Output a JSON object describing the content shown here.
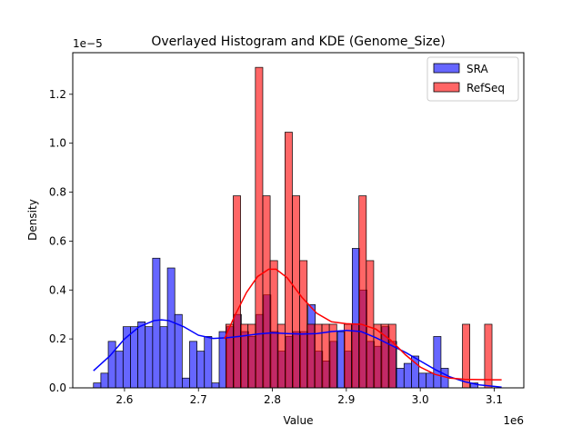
{
  "chart_data": {
    "type": "histogram",
    "title": "Overlayed Histogram and KDE (Genome_Size)",
    "xlabel": "Value",
    "ylabel": "Density",
    "x_offset_label": "1e6",
    "y_offset_label": "1e−5",
    "xlim": [
      2530000,
      3140000
    ],
    "ylim": [
      0,
      1.37e-05
    ],
    "x_ticks": [
      2600000,
      2700000,
      2800000,
      2900000,
      3000000,
      3100000
    ],
    "x_tick_labels": [
      "2.6",
      "2.7",
      "2.8",
      "2.9",
      "3.0",
      "3.1"
    ],
    "y_ticks": [
      0,
      2e-06,
      4e-06,
      6e-06,
      8e-06,
      1e-05,
      1.2e-05
    ],
    "y_tick_labels": [
      "0.0",
      "0.2",
      "0.4",
      "0.6",
      "0.8",
      "1.0",
      "1.2"
    ],
    "legend": {
      "position": "upper right"
    },
    "series": [
      {
        "name": "SRA",
        "color": "#0000ff",
        "kde_color": "#0000ff",
        "bin_edges": [
          2558000,
          2568000,
          2578000,
          2588000,
          2598000,
          2608000,
          2618000,
          2628000,
          2638000,
          2648000,
          2658000,
          2668000,
          2678000,
          2688000,
          2698000,
          2708000,
          2718000,
          2728000,
          2738000,
          2748000,
          2758000,
          2768000,
          2778000,
          2788000,
          2798000,
          2808000,
          2818000,
          2828000,
          2838000,
          2848000,
          2858000,
          2868000,
          2878000,
          2888000,
          2898000,
          2908000,
          2918000,
          2928000,
          2938000,
          2948000,
          2958000,
          2968000,
          2978000,
          2988000,
          2998000,
          3008000,
          3018000,
          3028000,
          3038000,
          3048000,
          3058000,
          3068000,
          3078000,
          3088000,
          3098000,
          3108000
        ],
        "density": [
          2e-07,
          6e-07,
          1.9e-06,
          1.5e-06,
          2.5e-06,
          2.5e-06,
          2.7e-06,
          2.5e-06,
          5.3e-06,
          2.5e-06,
          4.9e-06,
          3e-06,
          4e-07,
          1.9e-06,
          1.5e-06,
          2.1e-06,
          2e-07,
          2.3e-06,
          2.5e-06,
          3e-06,
          2.3e-06,
          2.1e-06,
          3e-06,
          3.8e-06,
          2.3e-06,
          1.5e-06,
          2.1e-06,
          2.3e-06,
          2.3e-06,
          3.4e-06,
          1.5e-06,
          1.1e-06,
          1.9e-06,
          2.3e-06,
          1.5e-06,
          5.7e-06,
          4e-06,
          1.9e-06,
          1.7e-06,
          2.5e-06,
          1.9e-06,
          8e-07,
          1e-06,
          1.3e-06,
          6e-07,
          6e-07,
          2.1e-06,
          8e-07,
          0,
          0,
          0,
          2e-07,
          0,
          0,
          0,
          2e-07
        ],
        "kde_x": [
          2558000,
          2580000,
          2600000,
          2620000,
          2640000,
          2650000,
          2660000,
          2680000,
          2700000,
          2720000,
          2740000,
          2760000,
          2780000,
          2800000,
          2820000,
          2840000,
          2860000,
          2880000,
          2900000,
          2920000,
          2940000,
          2960000,
          2980000,
          3000000,
          3020000,
          3040000,
          3060000,
          3080000,
          3100000,
          3110000
        ],
        "kde_y": [
          7e-07,
          1.3e-06,
          2e-06,
          2.5e-06,
          2.75e-06,
          2.78e-06,
          2.75e-06,
          2.5e-06,
          2.15e-06,
          2.02e-06,
          2.05e-06,
          2.12e-06,
          2.2e-06,
          2.25e-06,
          2.22e-06,
          2.2e-06,
          2.22e-06,
          2.3e-06,
          2.35e-06,
          2.3e-06,
          2.05e-06,
          1.75e-06,
          1.45e-06,
          1.1e-06,
          7.5e-07,
          4.5e-07,
          2.5e-07,
          1.2e-07,
          6e-08,
          3e-08
        ]
      },
      {
        "name": "RefSeq",
        "color": "#ff0000",
        "kde_color": "#ff0000",
        "bin_edges": [
          2737000,
          2747000,
          2757000,
          2767000,
          2777000,
          2787000,
          2797000,
          2807000,
          2817000,
          2827000,
          2837000,
          2847000,
          2857000,
          2867000,
          2877000,
          2887000,
          2897000,
          2907000,
          2917000,
          2927000,
          2937000,
          2947000,
          2957000,
          2967000,
          2977000,
          2987000,
          2997000,
          3007000,
          3017000,
          3027000,
          3037000,
          3047000,
          3057000,
          3067000,
          3077000,
          3087000,
          3097000,
          3107000
        ],
        "density": [
          2.6e-06,
          7.85e-06,
          2.6e-06,
          2.6e-06,
          1.31e-05,
          7.85e-06,
          5.2e-06,
          2.6e-06,
          1.045e-05,
          7.85e-06,
          5.2e-06,
          2.6e-06,
          2.6e-06,
          2.6e-06,
          2.6e-06,
          0,
          2.6e-06,
          2.6e-06,
          7.85e-06,
          5.2e-06,
          2.6e-06,
          2.6e-06,
          2.6e-06,
          0,
          0,
          0,
          0,
          0,
          0,
          0,
          0,
          0,
          2.6e-06,
          0,
          0,
          2.6e-06,
          0,
          0
        ],
        "kde_x": [
          2735000,
          2750000,
          2765000,
          2780000,
          2795000,
          2805000,
          2820000,
          2840000,
          2860000,
          2880000,
          2900000,
          2920000,
          2940000,
          2960000,
          2980000,
          3000000,
          3020000,
          3040000,
          3060000,
          3080000,
          3100000,
          3110000
        ],
        "kde_y": [
          2e-06,
          3e-06,
          3.9e-06,
          4.55e-06,
          4.85e-06,
          4.85e-06,
          4.5e-06,
          3.7e-06,
          3.05e-06,
          2.7e-06,
          2.62e-06,
          2.6e-06,
          2.4e-06,
          1.95e-06,
          1.35e-06,
          8.5e-07,
          5.5e-07,
          4e-07,
          3.5e-07,
          3.4e-07,
          3.3e-07,
          3.3e-07
        ]
      }
    ]
  }
}
